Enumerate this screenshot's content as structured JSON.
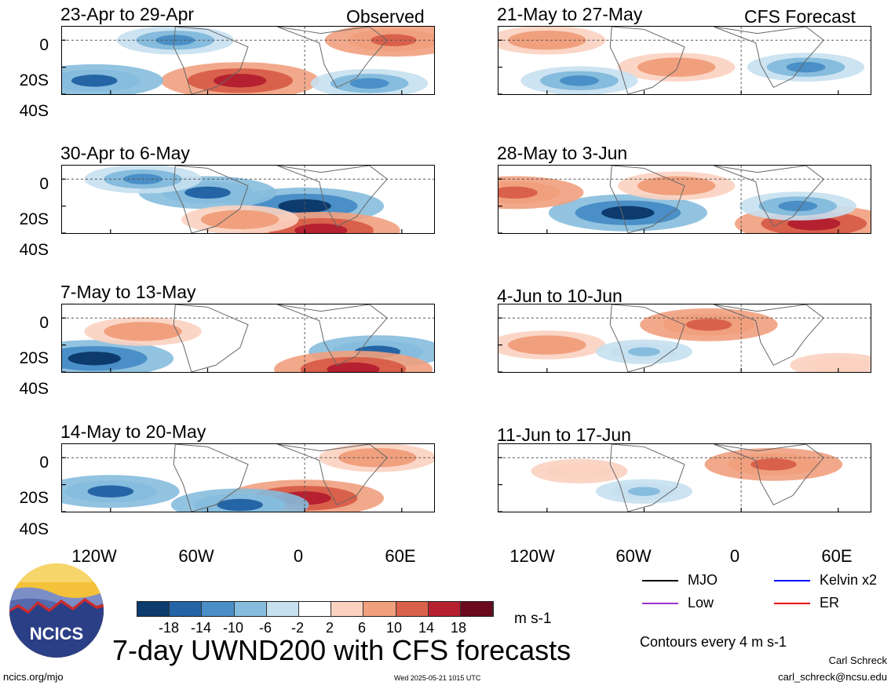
{
  "panels": [
    {
      "title": "23-Apr to 29-Apr",
      "tag": "Observed"
    },
    {
      "title": "21-May to 27-May",
      "tag": "CFS Forecast"
    },
    {
      "title": "30-Apr to 6-May",
      "tag": ""
    },
    {
      "title": "28-May to 3-Jun",
      "tag": ""
    },
    {
      "title": "7-May to 13-May",
      "tag": ""
    },
    {
      "title": "4-Jun to 10-Jun",
      "tag": ""
    },
    {
      "title": "14-May to 20-May",
      "tag": ""
    },
    {
      "title": "11-Jun to 17-Jun",
      "tag": ""
    }
  ],
  "y_ticks": [
    "0",
    "20S",
    "40S"
  ],
  "x_ticks_left": [
    "120W",
    "60W",
    "0",
    "60E"
  ],
  "x_ticks_right": [
    "120W",
    "60W",
    "0",
    "60E"
  ],
  "colorbar": {
    "labels": [
      "-18",
      "-14",
      "-10",
      "-6",
      "-2",
      "2",
      "6",
      "10",
      "14",
      "18"
    ],
    "colors": [
      "#0d3b6e",
      "#2565a6",
      "#4a8fc7",
      "#86bcdd",
      "#c6e0f0",
      "#ffffff",
      "#fbd2c0",
      "#f1a07e",
      "#d9614b",
      "#b52130",
      "#6b0a1e"
    ],
    "unit": "m s-1"
  },
  "legend": {
    "items": [
      {
        "label": "MJO",
        "color": "#000000"
      },
      {
        "label": "Kelvin x2",
        "color": "#0000ff"
      },
      {
        "label": "Low",
        "color": "#9933cc"
      },
      {
        "label": "ER",
        "color": "#ee0000"
      }
    ],
    "note": "Contours every 4 m s-1"
  },
  "logo_text": "NCICS",
  "main_title": "7-day UWND200 with CFS forecasts",
  "footer": {
    "left": "ncics.org/mjo",
    "center": "Wed 2025-05-21 1015 UTC",
    "author": "Carl Schreck",
    "email": "carl_schreck@ncsu.edu"
  },
  "chart_data": [
    {
      "type": "heatmap",
      "title": "23-Apr to 29-Apr",
      "subtitle": "Observed",
      "quantity": "UWND200",
      "unit": "m s-1",
      "xlim": [
        "150W",
        "80E"
      ],
      "ylim": [
        "40S",
        "10N"
      ],
      "x_ticks": [
        "120W",
        "60W",
        "0",
        "60E"
      ],
      "y_ticks": [
        "0",
        "20S",
        "40S"
      ],
      "features": [
        {
          "lon": -40,
          "lat": -30,
          "value": 18
        },
        {
          "lon": 55,
          "lat": 0,
          "value": 14
        },
        {
          "lon": -130,
          "lat": -30,
          "value": -14
        },
        {
          "lon": 40,
          "lat": -32,
          "value": -10
        },
        {
          "lon": -80,
          "lat": 0,
          "value": -10
        }
      ]
    },
    {
      "type": "heatmap",
      "title": "21-May to 27-May",
      "subtitle": "CFS Forecast",
      "quantity": "UWND200",
      "unit": "m s-1",
      "xlim": [
        "150W",
        "80E"
      ],
      "ylim": [
        "40S",
        "10N"
      ],
      "x_ticks": [
        "120W",
        "60W",
        "0",
        "60E"
      ],
      "y_ticks": [
        "0",
        "20S",
        "40S"
      ],
      "features": [
        {
          "lon": -40,
          "lat": -20,
          "value": 10
        },
        {
          "lon": -120,
          "lat": 0,
          "value": 10
        },
        {
          "lon": -100,
          "lat": -30,
          "value": -10
        },
        {
          "lon": 40,
          "lat": -20,
          "value": -10
        }
      ]
    },
    {
      "type": "heatmap",
      "title": "30-Apr to 6-May",
      "quantity": "UWND200",
      "unit": "m s-1",
      "xlim": [
        "150W",
        "80E"
      ],
      "ylim": [
        "40S",
        "10N"
      ],
      "x_ticks": [
        "120W",
        "60W",
        "0",
        "60E"
      ],
      "y_ticks": [
        "0",
        "20S",
        "40S"
      ],
      "features": [
        {
          "lon": 0,
          "lat": -20,
          "value": -18
        },
        {
          "lon": -60,
          "lat": -10,
          "value": -14
        },
        {
          "lon": -100,
          "lat": 0,
          "value": -10
        },
        {
          "lon": 10,
          "lat": -38,
          "value": 18
        },
        {
          "lon": -40,
          "lat": -30,
          "value": 10
        }
      ]
    },
    {
      "type": "heatmap",
      "title": "28-May to 3-Jun",
      "quantity": "UWND200",
      "unit": "m s-1",
      "xlim": [
        "150W",
        "80E"
      ],
      "ylim": [
        "40S",
        "10N"
      ],
      "x_ticks": [
        "120W",
        "60W",
        "0",
        "60E"
      ],
      "y_ticks": [
        "0",
        "20S",
        "40S"
      ],
      "features": [
        {
          "lon": -70,
          "lat": -25,
          "value": -18
        },
        {
          "lon": -140,
          "lat": -10,
          "value": 14
        },
        {
          "lon": -40,
          "lat": -5,
          "value": 10
        },
        {
          "lon": 45,
          "lat": -33,
          "value": 18
        },
        {
          "lon": 35,
          "lat": -20,
          "value": -10
        }
      ]
    },
    {
      "type": "heatmap",
      "title": "7-May to 13-May",
      "quantity": "UWND200",
      "unit": "m s-1",
      "xlim": [
        "150W",
        "80E"
      ],
      "ylim": [
        "40S",
        "10N"
      ],
      "x_ticks": [
        "120W",
        "60W",
        "0",
        "60E"
      ],
      "y_ticks": [
        "0",
        "20S",
        "40S"
      ],
      "features": [
        {
          "lon": -130,
          "lat": -30,
          "value": -18
        },
        {
          "lon": 45,
          "lat": -25,
          "value": -14
        },
        {
          "lon": 30,
          "lat": -38,
          "value": 18
        },
        {
          "lon": -100,
          "lat": -10,
          "value": 10
        }
      ]
    },
    {
      "type": "heatmap",
      "title": "4-Jun to 10-Jun",
      "quantity": "UWND200",
      "unit": "m s-1",
      "xlim": [
        "150W",
        "80E"
      ],
      "ylim": [
        "40S",
        "10N"
      ],
      "x_ticks": [
        "120W",
        "60W",
        "0",
        "60E"
      ],
      "y_ticks": [
        "0",
        "20S",
        "40S"
      ],
      "features": [
        {
          "lon": -20,
          "lat": -5,
          "value": 14
        },
        {
          "lon": -120,
          "lat": -20,
          "value": 10
        },
        {
          "lon": -60,
          "lat": -25,
          "value": -6
        },
        {
          "lon": 60,
          "lat": -35,
          "value": 6
        }
      ]
    },
    {
      "type": "heatmap",
      "title": "14-May to 20-May",
      "quantity": "UWND200",
      "unit": "m s-1",
      "xlim": [
        "150W",
        "80E"
      ],
      "ylim": [
        "40S",
        "10N"
      ],
      "x_ticks": [
        "120W",
        "60W",
        "0",
        "60E"
      ],
      "y_ticks": [
        "0",
        "20S",
        "40S"
      ],
      "features": [
        {
          "lon": 0,
          "lat": -30,
          "value": 18
        },
        {
          "lon": 45,
          "lat": 0,
          "value": 10
        },
        {
          "lon": -120,
          "lat": -25,
          "value": -14
        },
        {
          "lon": -40,
          "lat": -35,
          "value": -14
        }
      ]
    },
    {
      "type": "heatmap",
      "title": "11-Jun to 17-Jun",
      "quantity": "UWND200",
      "unit": "m s-1",
      "xlim": [
        "150W",
        "80E"
      ],
      "ylim": [
        "40S",
        "10N"
      ],
      "x_ticks": [
        "120W",
        "60W",
        "0",
        "60E"
      ],
      "y_ticks": [
        "0",
        "20S",
        "40S"
      ],
      "features": [
        {
          "lon": 20,
          "lat": -5,
          "value": 14
        },
        {
          "lon": -100,
          "lat": -10,
          "value": 6
        },
        {
          "lon": -60,
          "lat": -25,
          "value": -6
        }
      ]
    }
  ]
}
